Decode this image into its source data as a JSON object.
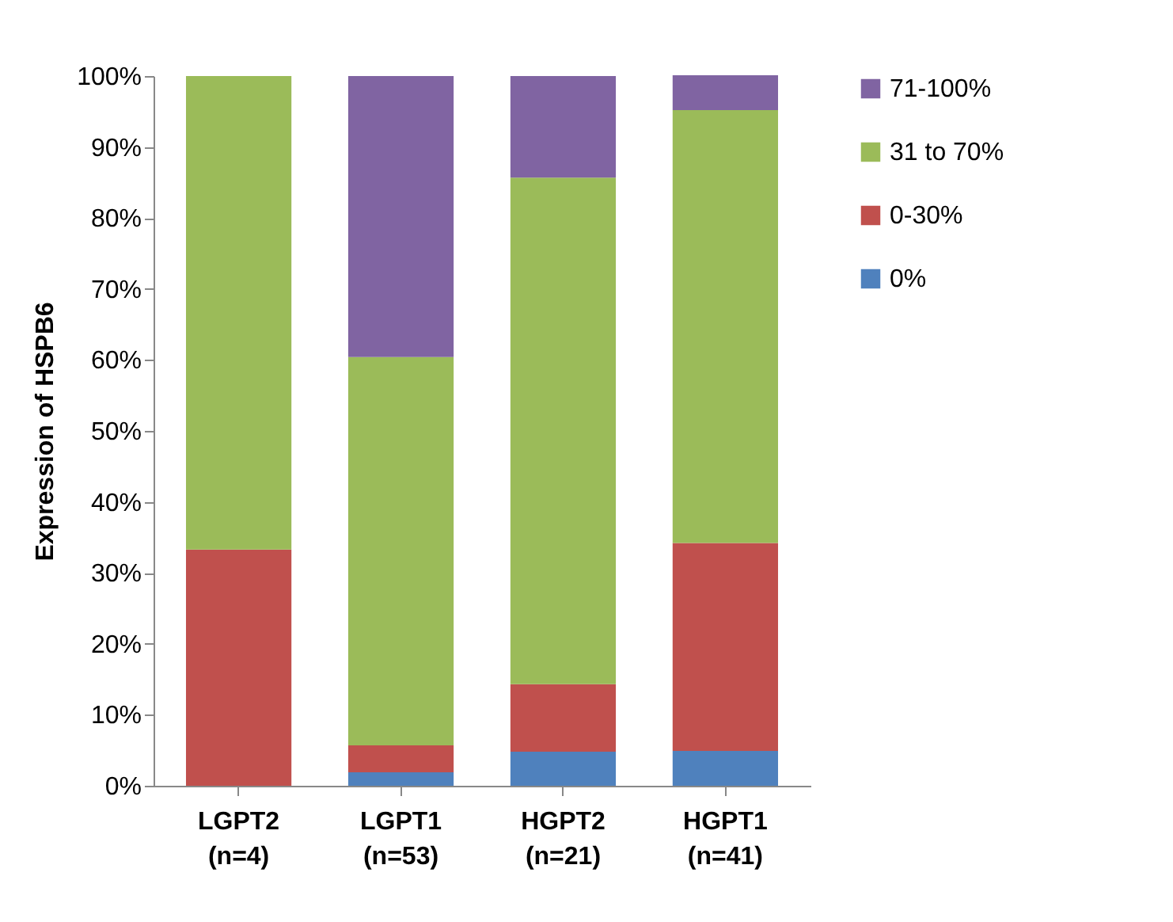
{
  "chart_data": {
    "type": "bar",
    "stacked": true,
    "ylabel": "Expression of HSPB6",
    "categories": [
      "LGPT2 (n=4)",
      "LGPT1 (n=53)",
      "HGPT2 (n=21)",
      "HGPT1 (n=41)"
    ],
    "series": [
      {
        "name": "0%",
        "color": "#4f81bd",
        "values": [
          0,
          1.9,
          4.8,
          4.9
        ]
      },
      {
        "name": "0-30%",
        "color": "#c0504d",
        "values": [
          33.3,
          3.8,
          9.5,
          29.3
        ]
      },
      {
        "name": "31 to 70%",
        "color": "#9bbb59",
        "values": [
          66.7,
          54.7,
          71.4,
          61
        ]
      },
      {
        "name": "71-100%",
        "color": "#8064a2",
        "values": [
          0,
          39.6,
          14.3,
          4.9
        ]
      }
    ],
    "ylim": [
      0,
      100
    ],
    "yticks": [
      {
        "value": 0,
        "label": "0%"
      },
      {
        "value": 10,
        "label": "10%"
      },
      {
        "value": 20,
        "label": "20%"
      },
      {
        "value": 30,
        "label": "30%"
      },
      {
        "value": 40,
        "label": "40%"
      },
      {
        "value": 50,
        "label": "50%"
      },
      {
        "value": 60,
        "label": "60%"
      },
      {
        "value": 70,
        "label": "70%"
      },
      {
        "value": 80,
        "label": "80%"
      },
      {
        "value": 90,
        "label": "90%"
      },
      {
        "value": 100,
        "label": "100%"
      }
    ],
    "legend": "right",
    "grid": false
  }
}
